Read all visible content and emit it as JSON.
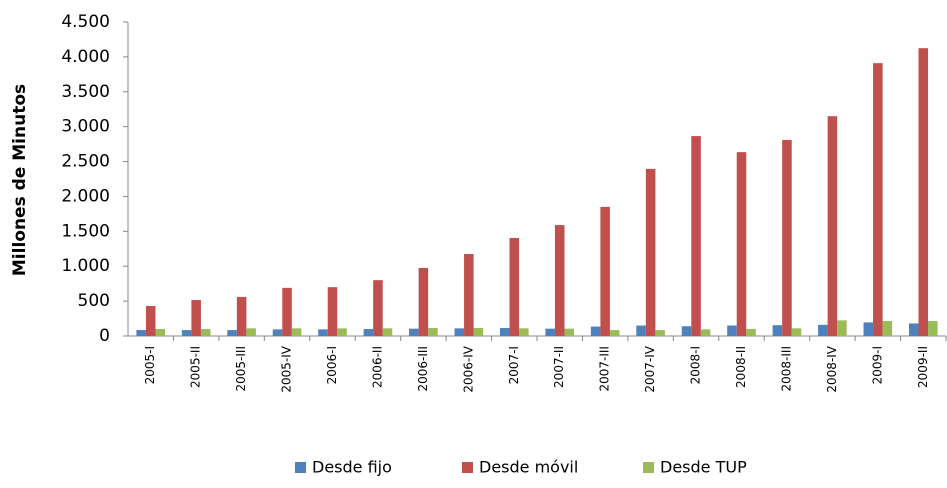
{
  "chart_data": {
    "type": "bar",
    "y_label": "Millones de Minutos",
    "categories": [
      "2005-I",
      "2005-II",
      "2005-III",
      "2005-IV",
      "2006-I",
      "2006-II",
      "2006-III",
      "2006-IV",
      "2007-I",
      "2007-II",
      "2007-III",
      "2007-IV",
      "2008-I",
      "2008-II",
      "2008-III",
      "2008-IV",
      "2009-I",
      "2009-II"
    ],
    "series": [
      {
        "name": "Desde fijo",
        "color": "#4f81bd",
        "values": [
          85,
          85,
          85,
          95,
          95,
          100,
          105,
          110,
          115,
          105,
          135,
          150,
          140,
          150,
          155,
          160,
          195,
          180
        ]
      },
      {
        "name": "Desde móvil",
        "color": "#c0504d",
        "values": [
          430,
          515,
          560,
          690,
          700,
          800,
          975,
          1175,
          1405,
          1590,
          1850,
          2395,
          2865,
          2635,
          2810,
          3150,
          3910,
          4125
        ]
      },
      {
        "name": "Desde TUP",
        "color": "#9bbb59",
        "values": [
          100,
          100,
          110,
          110,
          110,
          110,
          115,
          115,
          110,
          105,
          85,
          85,
          95,
          100,
          110,
          225,
          215,
          215
        ]
      }
    ],
    "ylim": [
      0,
      4500
    ],
    "yticks": [
      0,
      500,
      {
        "value": 1000,
        "label": "1.000"
      },
      {
        "value": 1500,
        "label": "1.500"
      },
      {
        "value": 2000,
        "label": "2.000"
      },
      {
        "value": 2500,
        "label": "2.500"
      },
      {
        "value": 3000,
        "label": "3.000"
      },
      {
        "value": 3500,
        "label": "3.500"
      },
      {
        "value": 4000,
        "label": "4.000"
      },
      {
        "value": 4500,
        "label": "4.500"
      }
    ],
    "legend": "bottom"
  }
}
